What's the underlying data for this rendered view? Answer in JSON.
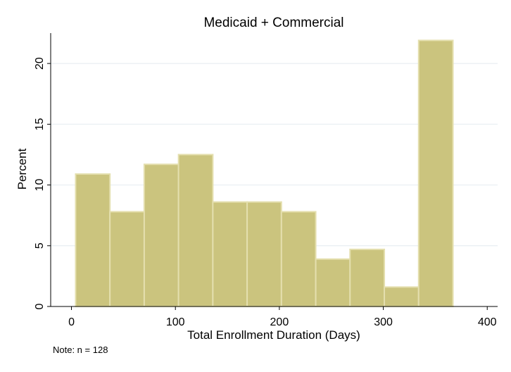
{
  "chart_data": {
    "type": "bar",
    "title": "Medicaid + Commercial",
    "xlabel": "Total Enrollment Duration (Days)",
    "ylabel": "Percent",
    "note": "Note: n = 128",
    "xlim": [
      -20,
      410
    ],
    "ylim": [
      0,
      22.5
    ],
    "xticks": [
      0,
      100,
      200,
      300,
      400
    ],
    "yticks": [
      0,
      5,
      10,
      15,
      20
    ],
    "grid": true,
    "bar_color": "#cbc47e",
    "bar_edge_color": "#e4dfae",
    "bins": [
      {
        "start": 4,
        "end": 37,
        "value": 10.9
      },
      {
        "start": 37,
        "end": 70,
        "value": 7.8
      },
      {
        "start": 70,
        "end": 103,
        "value": 11.7
      },
      {
        "start": 103,
        "end": 136,
        "value": 12.5
      },
      {
        "start": 136,
        "end": 169,
        "value": 8.6
      },
      {
        "start": 169,
        "end": 202,
        "value": 8.6
      },
      {
        "start": 202,
        "end": 235,
        "value": 7.8
      },
      {
        "start": 235,
        "end": 268,
        "value": 3.9
      },
      {
        "start": 268,
        "end": 301,
        "value": 4.7
      },
      {
        "start": 301,
        "end": 334,
        "value": 1.6
      },
      {
        "start": 334,
        "end": 367,
        "value": 21.9
      }
    ]
  }
}
